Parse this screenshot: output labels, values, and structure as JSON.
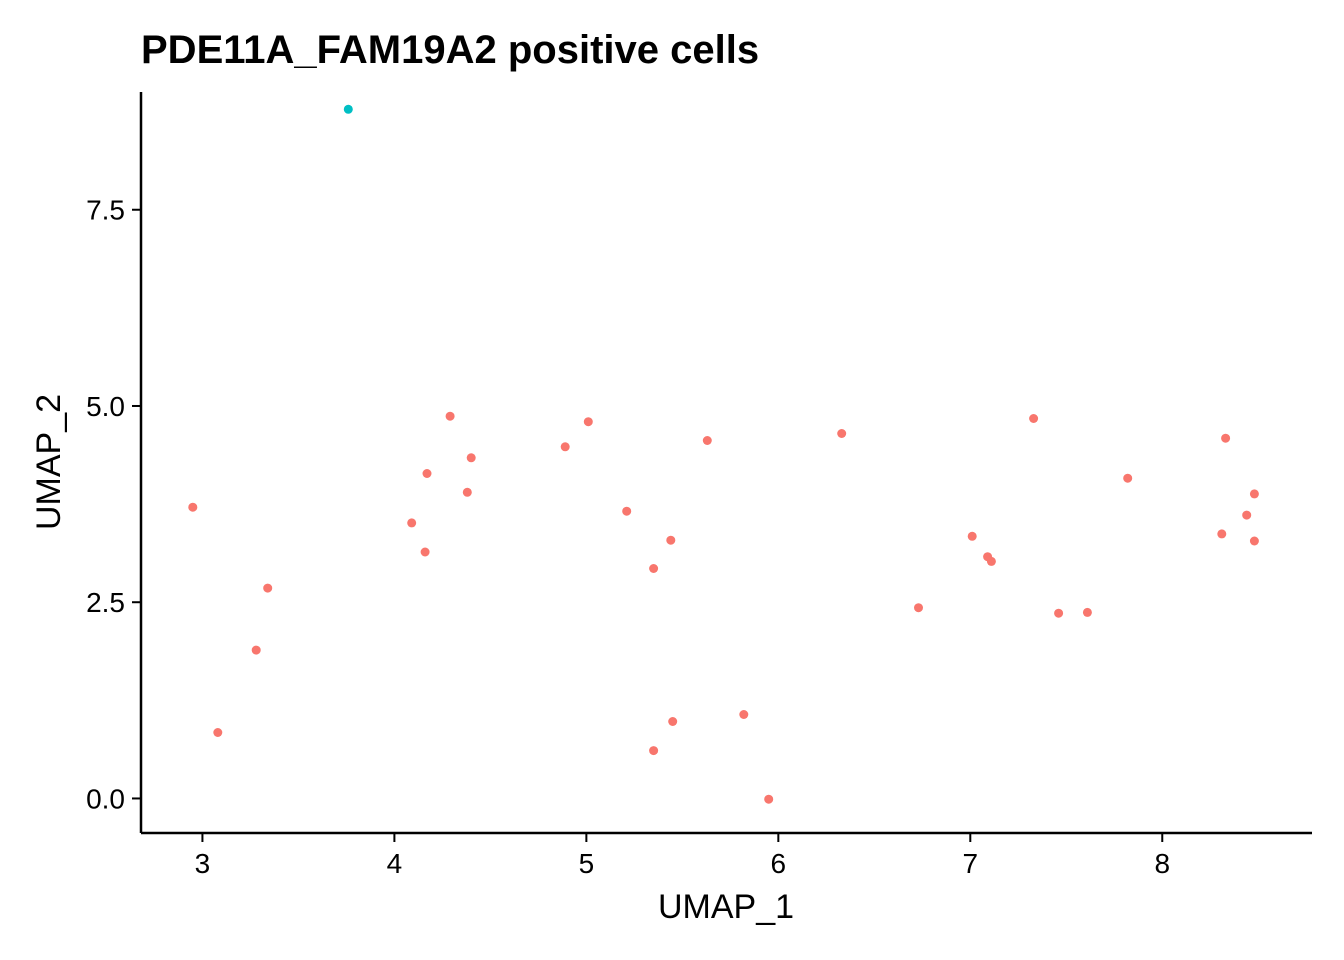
{
  "chart_data": {
    "type": "scatter",
    "title": "PDE11A_FAM19A2 positive cells",
    "xlabel": "UMAP_1",
    "ylabel": "UMAP_2",
    "xlim": [
      2.68,
      8.78
    ],
    "ylim": [
      -0.44,
      9.0
    ],
    "xticks": [
      3,
      4,
      5,
      6,
      7,
      8
    ],
    "xtick_labels": [
      "3",
      "4",
      "5",
      "6",
      "7",
      "8"
    ],
    "yticks": [
      0.0,
      2.5,
      5.0,
      7.5
    ],
    "ytick_labels": [
      "0.0",
      "2.5",
      "5.0",
      "7.5"
    ],
    "grid": false,
    "legend": "none",
    "series": [
      {
        "color": "#F8766D",
        "points": [
          [
            2.95,
            3.71
          ],
          [
            3.08,
            0.84
          ],
          [
            3.28,
            1.89
          ],
          [
            3.34,
            2.68
          ],
          [
            4.09,
            3.51
          ],
          [
            4.16,
            3.14
          ],
          [
            4.17,
            4.14
          ],
          [
            4.29,
            4.87
          ],
          [
            4.38,
            3.9
          ],
          [
            4.4,
            4.34
          ],
          [
            4.89,
            4.48
          ],
          [
            5.01,
            4.8
          ],
          [
            5.21,
            3.66
          ],
          [
            5.35,
            2.93
          ],
          [
            5.35,
            0.61
          ],
          [
            5.44,
            3.29
          ],
          [
            5.45,
            0.98
          ],
          [
            5.63,
            4.56
          ],
          [
            5.82,
            1.07
          ],
          [
            5.95,
            -0.01
          ],
          [
            6.33,
            4.65
          ],
          [
            6.73,
            2.43
          ],
          [
            7.01,
            3.34
          ],
          [
            7.09,
            3.08
          ],
          [
            7.11,
            3.02
          ],
          [
            7.33,
            4.84
          ],
          [
            7.46,
            2.36
          ],
          [
            7.61,
            2.37
          ],
          [
            7.82,
            4.08
          ],
          [
            8.31,
            3.37
          ],
          [
            8.33,
            4.59
          ],
          [
            8.44,
            3.61
          ],
          [
            8.48,
            3.88
          ],
          [
            8.48,
            3.28
          ]
        ]
      },
      {
        "color": "#00BFC4",
        "points": [
          [
            3.76,
            8.78
          ]
        ]
      }
    ]
  }
}
